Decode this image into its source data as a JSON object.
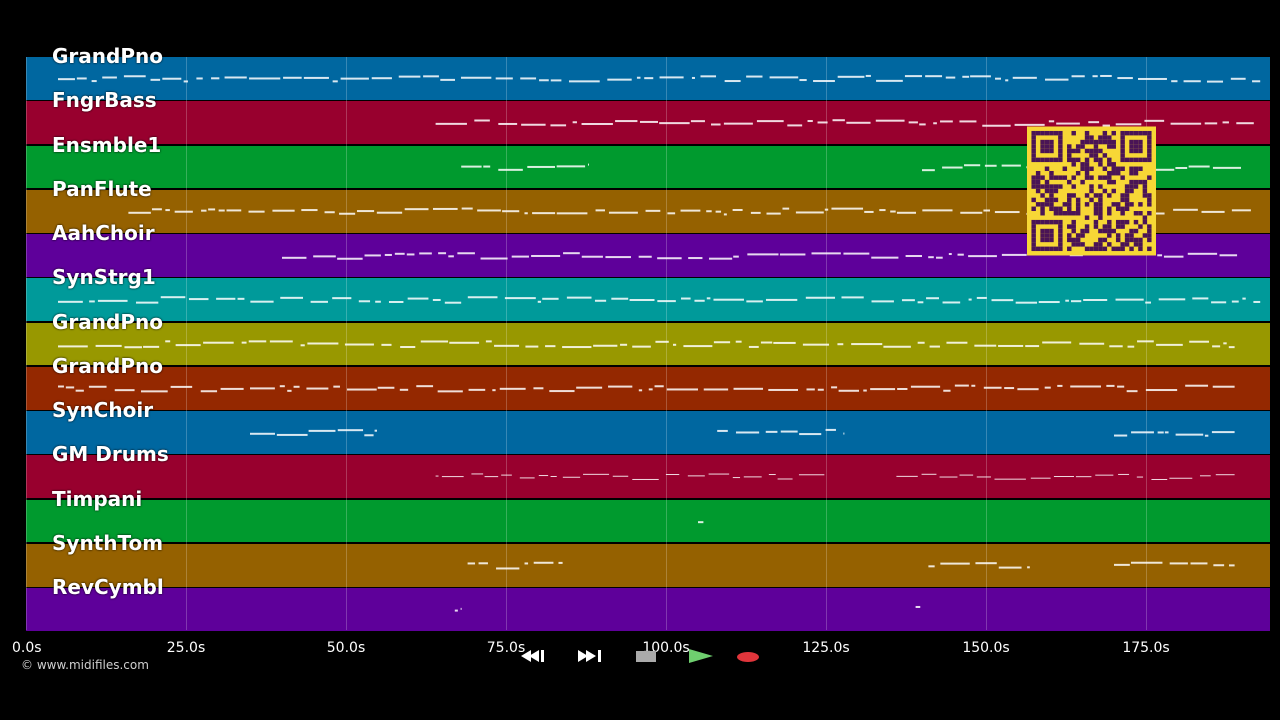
{
  "tracks": [
    {
      "label": "GrandPno",
      "color": "#0067a0"
    },
    {
      "label": "FngrBass",
      "color": "#98002e"
    },
    {
      "label": "Ensmble1",
      "color": "#009a2e"
    },
    {
      "label": "PanFlute",
      "color": "#956100"
    },
    {
      "label": "AahChoir",
      "color": "#5e009a"
    },
    {
      "label": "SynStrg1",
      "color": "#009a9a"
    },
    {
      "label": "GrandPno",
      "color": "#989800"
    },
    {
      "label": "GrandPno",
      "color": "#942800"
    },
    {
      "label": "SynChoir",
      "color": "#0067a0"
    },
    {
      "label": "GM Drums",
      "color": "#98002e"
    },
    {
      "label": "Timpani",
      "color": "#009a2e"
    },
    {
      "label": "SynthTom",
      "color": "#956100"
    },
    {
      "label": "RevCymbl",
      "color": "#5e009a"
    }
  ],
  "time_axis": {
    "ticks": [
      "0.0s",
      "25.0s",
      "50.0s",
      "75.0s",
      "100.0s",
      "125.0s",
      "150.0s",
      "175.0s"
    ],
    "tick_values": [
      0,
      25,
      50,
      75,
      100,
      125,
      150,
      175
    ]
  },
  "copyright": "© www.midifiles.com",
  "transport": {
    "buttons": [
      {
        "name": "rewind-button",
        "icon": "rewind-icon",
        "color": "#3a3a3a"
      },
      {
        "name": "fast-forward-button",
        "icon": "fast-forward-icon",
        "color": "#3a3a3a"
      },
      {
        "name": "stop-button",
        "icon": "stop-icon",
        "color": "#5a5a5a"
      },
      {
        "name": "play-button",
        "icon": "play-icon",
        "color": "#2e7d32"
      },
      {
        "name": "record-button",
        "icon": "record-icon",
        "color": "#6b1f1f"
      }
    ]
  },
  "overlay": {
    "icon": "qr-code-icon",
    "color": "#f7d736"
  }
}
